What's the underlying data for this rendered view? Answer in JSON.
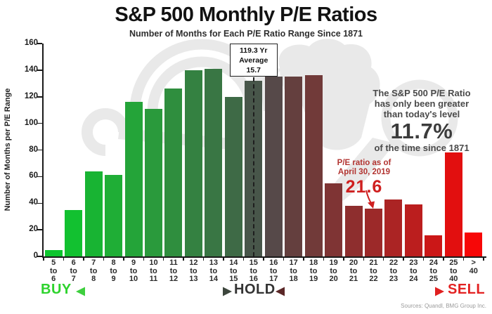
{
  "title": "S&P 500 Monthly P/E Ratios",
  "subtitle": "Number of Months for Each P/E Ratio Range Since 1871",
  "chart_data": {
    "type": "bar",
    "title": "S&P 500 Monthly P/E Ratios",
    "subtitle": "Number of Months for Each P/E Ratio Range Since 1871",
    "xlabel": "",
    "ylabel": "Number of Months per P/E Range",
    "ylim": [
      0,
      160
    ],
    "ytick_step": 20,
    "grid": false,
    "legend": null,
    "categories": [
      "5 to 6",
      "6 to 7",
      "7 to 8",
      "8 to 9",
      "9 to 10",
      "10 to 11",
      "11 to 12",
      "12 to 13",
      "13 to 14",
      "14 to 15",
      "15 to 16",
      "16 to 17",
      "17 to 18",
      "18 to 19",
      "19 to 20",
      "20 to 21",
      "21 to 22",
      "22 to 23",
      "23 to 24",
      "24 to 25",
      "25 to 40",
      "> 40"
    ],
    "values": [
      5,
      35,
      64,
      61,
      116,
      111,
      126,
      140,
      141,
      120,
      132,
      135,
      135,
      136,
      55,
      38,
      36,
      43,
      39,
      16,
      78,
      18
    ],
    "bar_colors": [
      "#0dc52e",
      "#12c130",
      "#18b433",
      "#1fae36",
      "#24a439",
      "#2a9a3c",
      "#2f8e3e",
      "#348141",
      "#397644",
      "#3e6a46",
      "#48564a",
      "#564949",
      "#643f3e",
      "#713a39",
      "#7f3434",
      "#8e2e2e",
      "#9c2929",
      "#ab2424",
      "#bb1e1e",
      "#cb1717",
      "#e20f0f",
      "#f70707"
    ],
    "average_line": {
      "category_index": 10,
      "label_lines": [
        "119.3 Yr",
        "Average",
        "15.7"
      ]
    }
  },
  "annotations": {
    "average_box": {
      "lines": [
        "119.3 Yr",
        "Average",
        "15.7"
      ]
    },
    "greater": {
      "lines": [
        "The S&P 500 P/E Ratio",
        "has only been greater",
        "than today's level"
      ],
      "value": "11.7%",
      "tail": "of the time since 1871"
    },
    "pe_ratio": {
      "lines": [
        "P/E ratio as of",
        "April 30, 2019"
      ],
      "value": "21.6"
    }
  },
  "zones": {
    "buy": "BUY",
    "hold": "HOLD",
    "sell": "SELL"
  },
  "source": "Sources: Quandl, BMG Group Inc.",
  "colors": {
    "buy_label": "#2dd32d",
    "hold_label": "#333333",
    "sell_label": "#e32222",
    "pe_note_text": "#b23431",
    "pe_note_value": "#cf1f1f",
    "arrow_buy_start": "#3ecf3e",
    "arrow_buy_end": "#3d463d",
    "arrow_sell_start": "#5a2727",
    "arrow_sell_end": "#e02020",
    "watermark": "#e9e9e9",
    "axis": "#1a1a1a"
  }
}
